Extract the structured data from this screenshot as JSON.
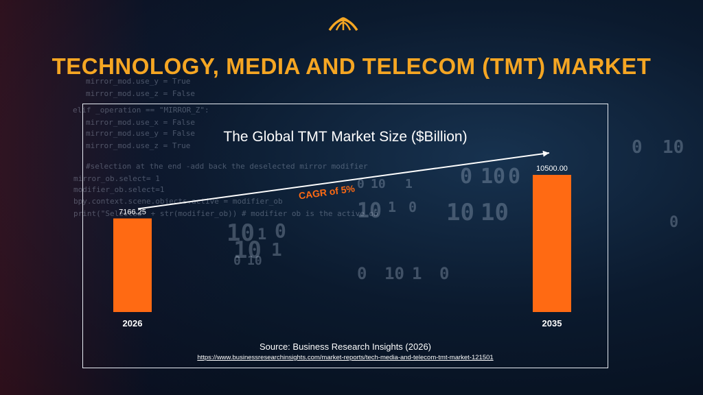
{
  "header": {
    "title": "TECHNOLOGY, MEDIA AND TELECOM (TMT) MARKET"
  },
  "background_code": [
    "mirror_mod.use_y = True",
    "mirror_mod.use_z = False",
    "elif _operation == \"MIRROR_Z\":",
    "mirror_mod.use_x = False",
    "mirror_mod.use_y = False",
    "mirror_mod.use_z = True",
    "#selection at the end -add back the deselected mirror modifier",
    "mirror_ob.select= 1",
    "modifier_ob.select=1",
    "bpy.context.scene.objects.active = modifier_ob",
    "print(\"Selected\" + str(modifier_ob)) # modifier ob is the active ob"
  ],
  "chart_data": {
    "type": "bar",
    "title": "The Global TMT Market Size ($Billion)",
    "categories": [
      "2026",
      "2035"
    ],
    "values": [
      7166.25,
      10500.0
    ],
    "value_labels": [
      "7166.25",
      "10500.00"
    ],
    "annotation": "CAGR of 5%",
    "xlabel": "",
    "ylabel": "",
    "ylim": [
      0,
      10500
    ],
    "grid": false,
    "legend": "none",
    "bar_color": "#ff6a13",
    "annotation_color": "#ff6a13"
  },
  "footer": {
    "source": "Source: Business Research Insights (2026)",
    "url": "https://www.businessresearchinsights.com/market-reports/tech-media-and-telecom-tmt-market-121501"
  },
  "colors": {
    "title": "#f5a623",
    "frame": "#e9eef5",
    "text": "#ffffff"
  },
  "logo": {
    "icon": "dome-logo-icon"
  }
}
